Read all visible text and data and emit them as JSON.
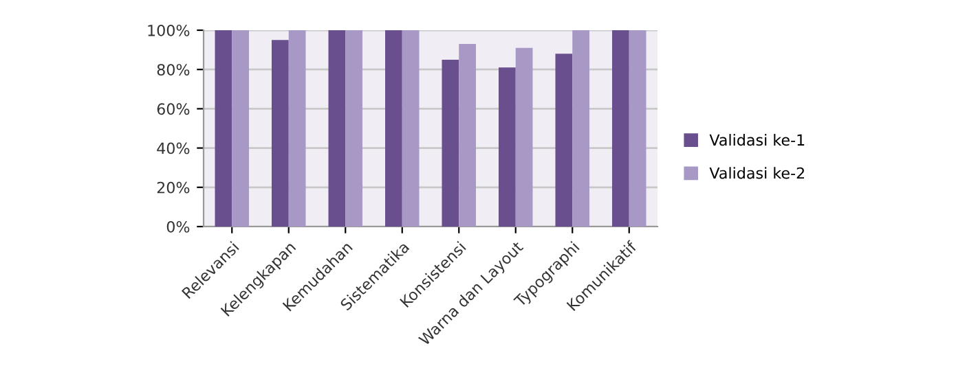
{
  "chart_data": {
    "type": "bar",
    "categories": [
      "Relevansi",
      "Kelengkapan",
      "Kemudahan",
      "Sistematika",
      "Konsistensi",
      "Warna dan Layout",
      "Typographi",
      "Komunikatif"
    ],
    "series": [
      {
        "name": "Validasi ke-1",
        "color": "#6a4f8e",
        "values": [
          100,
          95,
          100,
          100,
          85,
          81,
          88,
          100
        ]
      },
      {
        "name": "Validasi ke-2",
        "color": "#a898c6",
        "values": [
          100,
          100,
          100,
          100,
          93,
          91,
          100,
          100
        ]
      }
    ],
    "ylim": [
      0,
      100
    ],
    "yticks": [
      {
        "value": 0,
        "label": "0%"
      },
      {
        "value": 20,
        "label": "20%"
      },
      {
        "value": 40,
        "label": "40%"
      },
      {
        "value": 60,
        "label": "60%"
      },
      {
        "value": 80,
        "label": "80%"
      },
      {
        "value": 100,
        "label": "100%"
      }
    ],
    "grid": "y",
    "legend": "right"
  }
}
